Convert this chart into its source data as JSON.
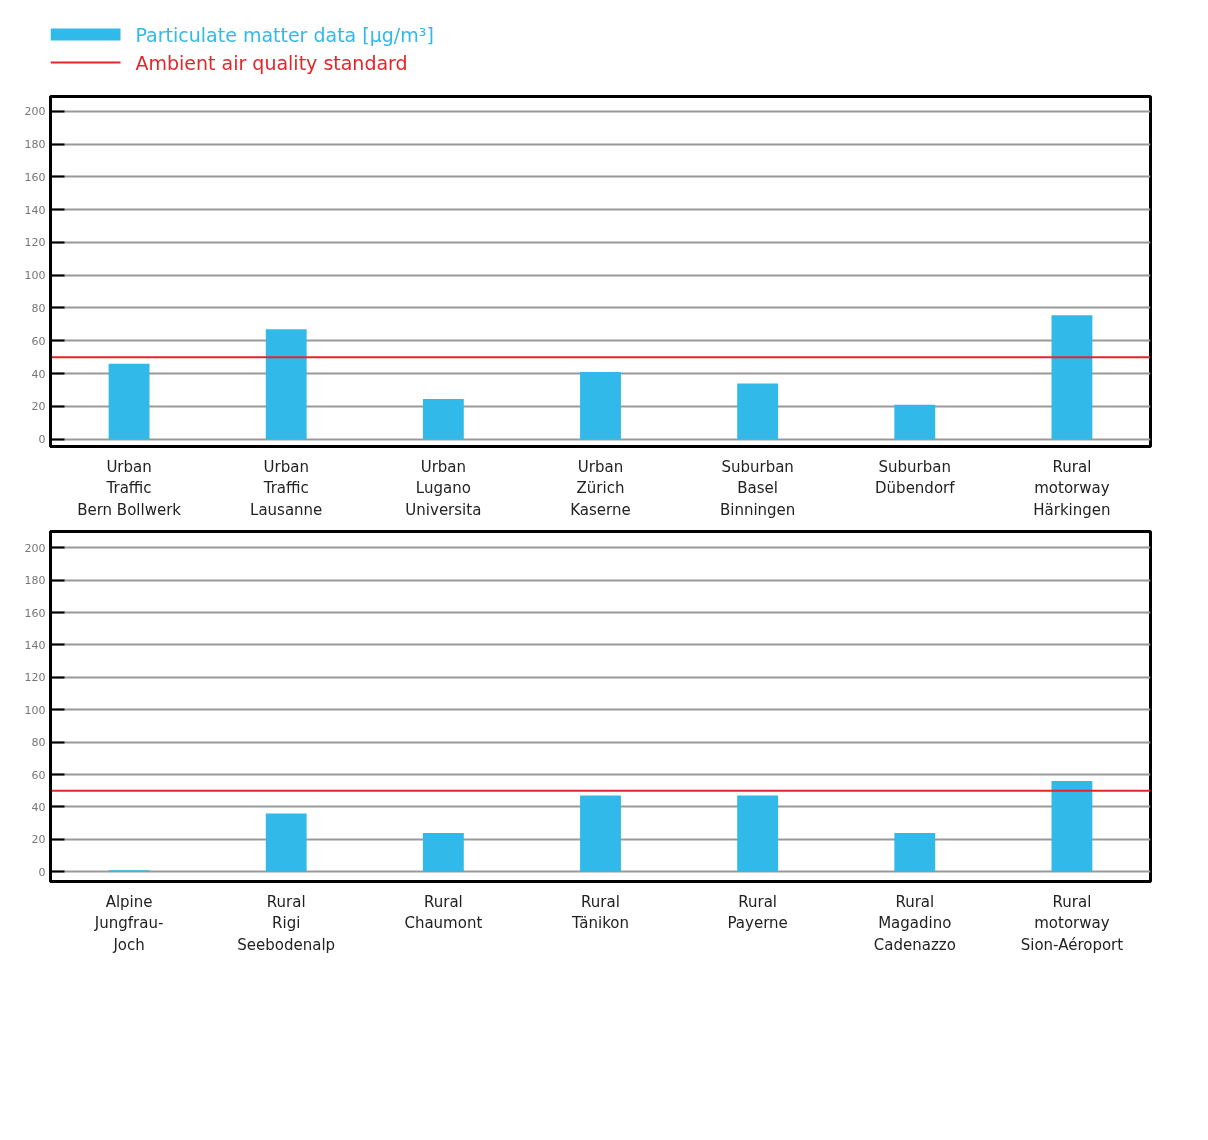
{
  "chart_data": [
    {
      "type": "bar",
      "categories": [
        "Urban\nTraffic\nBern Bollwerk",
        "Urban\nTraffic\nLausanne",
        "Urban\nLugano\nUniversita",
        "Urban\nZürich\nKaserne",
        "Suburban\nBasel\nBinningen",
        "Suburban\nDübendorf",
        "Rural\nmotorway\nHärkingen"
      ],
      "series": [
        {
          "name": "Particulate matter data [µg/m³]",
          "color": "#31b9e9",
          "values": [
            46,
            67,
            24.5,
            41,
            34,
            21,
            75.5
          ]
        }
      ],
      "ylim": [
        -4.5,
        209
      ],
      "yticks": [
        0,
        20,
        40,
        60,
        80,
        100,
        120,
        140,
        160,
        180,
        200
      ],
      "grid": "y",
      "legend": "top left",
      "ref_lines": [
        {
          "axis": "y",
          "value": 50,
          "label": "Ambient air quality standard",
          "color": "#e3262b"
        }
      ]
    },
    {
      "type": "bar",
      "categories": [
        "Alpine\nJungfrau-\nJoch",
        "Rural\nRigi\nSeebodenalp",
        "Rural\nChaumont",
        "Rural\nTänikon",
        "Rural\nPayerne",
        "Rural\nMagadino\nCadenazzo",
        "Rural\nmotorway\nSion-Aéroport"
      ],
      "series": [
        {
          "color": "#31b9e9",
          "values": [
            1,
            36,
            24,
            47,
            47,
            24,
            56
          ]
        }
      ],
      "ylim": [
        -6,
        210
      ],
      "yticks": [
        0,
        20,
        40,
        60,
        80,
        100,
        120,
        140,
        160,
        180,
        200
      ],
      "grid": "y",
      "ref_lines": [
        {
          "axis": "y",
          "value": 50,
          "color": "#e3262b"
        }
      ]
    }
  ]
}
